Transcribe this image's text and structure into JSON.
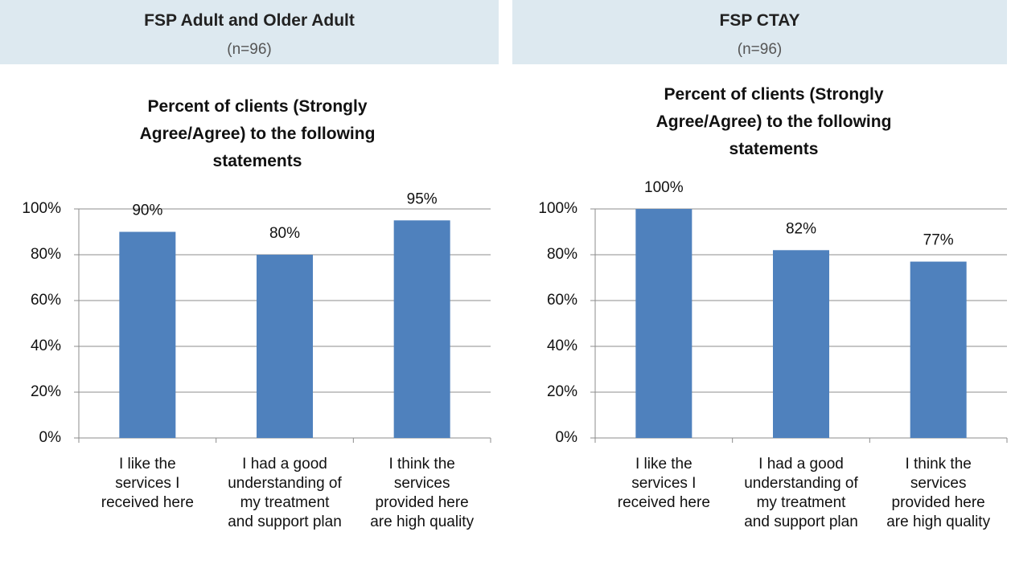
{
  "chart_data": [
    {
      "type": "bar",
      "panel_title": "FSP Adult and Older Adult",
      "panel_subtitle": "(n=96)",
      "title": "Percent of clients (Strongly Agree/Agree) to the following statements",
      "categories": [
        "I like the services I received here",
        "I had a good understanding of my treatment and support plan",
        "I think the services provided here are high quality"
      ],
      "values": [
        90,
        80,
        95
      ],
      "value_labels": [
        "90%",
        "80%",
        "95%"
      ],
      "color": "#4f81bd",
      "ylim": [
        0,
        100
      ],
      "yticks": [
        {
          "value": 0,
          "label": "0%"
        },
        {
          "value": 20,
          "label": "20%"
        },
        {
          "value": 40,
          "label": "40%"
        },
        {
          "value": 60,
          "label": "60%"
        },
        {
          "value": 80,
          "label": "80%"
        },
        {
          "value": 100,
          "label": "100%"
        }
      ],
      "grid": true
    },
    {
      "type": "bar",
      "panel_title": "FSP CTAY",
      "panel_subtitle": "(n=96)",
      "title": "Percent of clients (Strongly Agree/Agree) to the following statements",
      "categories": [
        "I like the services I received here",
        "I had a good understanding of my treatment and support plan",
        "I think the services provided here are high quality"
      ],
      "values": [
        100,
        82,
        77
      ],
      "value_labels": [
        "100%",
        "82%",
        "77%"
      ],
      "color": "#4f81bd",
      "ylim": [
        0,
        100
      ],
      "yticks": [
        {
          "value": 0,
          "label": "0%"
        },
        {
          "value": 20,
          "label": "20%"
        },
        {
          "value": 40,
          "label": "40%"
        },
        {
          "value": 60,
          "label": "60%"
        },
        {
          "value": 80,
          "label": "80%"
        },
        {
          "value": 100,
          "label": "100%"
        }
      ],
      "grid": true
    }
  ]
}
